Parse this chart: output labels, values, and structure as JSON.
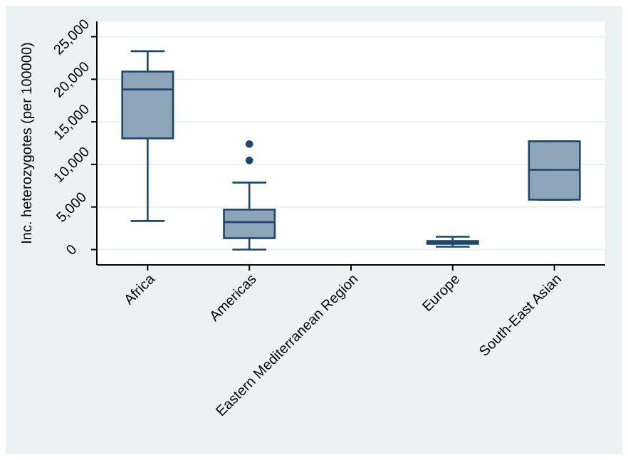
{
  "chart_data": {
    "type": "box",
    "ylabel": "Inc. heterozygotes (per 100000)",
    "categories": [
      "Africa",
      "Americas",
      "Eastern Mediterranean Region",
      "Europe",
      "South-East Asian"
    ],
    "boxes": [
      {
        "low": 3350,
        "q1": 13060,
        "median": 18800,
        "q3": 20900,
        "high": 23300
      },
      {
        "low": 0,
        "q1": 1340,
        "median": 3230,
        "q3": 4690,
        "high": 7870,
        "outliers": [
          10480,
          12390
        ]
      },
      null,
      {
        "low": 330,
        "q1": 670,
        "median": 840,
        "q3": 1000,
        "high": 1500
      },
      {
        "low": 5860,
        "q1": 5860,
        "median": 9370,
        "q3": 12720,
        "high": 12720
      }
    ],
    "color": "#8ea4b8",
    "ylim": [
      -1800,
      26800
    ],
    "yticks": [
      {
        "value": 0,
        "label": "0"
      },
      {
        "value": 5000,
        "label": "5,000"
      },
      {
        "value": 10000,
        "label": "10,000"
      },
      {
        "value": 15000,
        "label": "15,000"
      },
      {
        "value": 20000,
        "label": "20,000"
      },
      {
        "value": 25000,
        "label": "25,000"
      }
    ],
    "grid": "y",
    "marker": "circle"
  }
}
